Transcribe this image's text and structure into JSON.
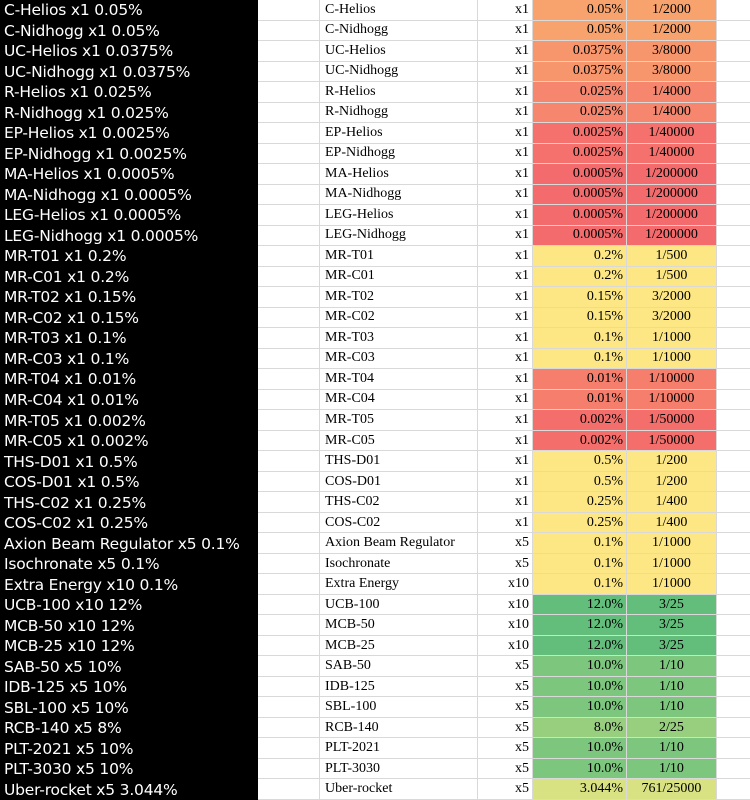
{
  "rows": [
    {
      "label": "C-Helios x1 0.05%",
      "name": "C-Helios",
      "qty": "x1",
      "pct": "0.05%",
      "frac": "1/2000",
      "color": "#f8a36e"
    },
    {
      "label": "C-Nidhogg x1 0.05%",
      "name": "C-Nidhogg",
      "qty": "x1",
      "pct": "0.05%",
      "frac": "1/2000",
      "color": "#f8a36e"
    },
    {
      "label": "UC-Helios x1 0.0375%",
      "name": "UC-Helios",
      "qty": "x1",
      "pct": "0.0375%",
      "frac": "3/8000",
      "color": "#f7956d"
    },
    {
      "label": "UC-Nidhogg x1 0.0375%",
      "name": "UC-Nidhogg",
      "qty": "x1",
      "pct": "0.0375%",
      "frac": "3/8000",
      "color": "#f7956d"
    },
    {
      "label": "R-Helios x1 0.025%",
      "name": "R-Helios",
      "qty": "x1",
      "pct": "0.025%",
      "frac": "1/4000",
      "color": "#f6876e"
    },
    {
      "label": "R-Nidhogg x1 0.025%",
      "name": "R-Nidhogg",
      "qty": "x1",
      "pct": "0.025%",
      "frac": "1/4000",
      "color": "#f6876e"
    },
    {
      "label": "EP-Helios x1 0.0025%",
      "name": "EP-Helios",
      "qty": "x1",
      "pct": "0.0025%",
      "frac": "1/40000",
      "color": "#f4716d"
    },
    {
      "label": "EP-Nidhogg x1 0.0025%",
      "name": "EP-Nidhogg",
      "qty": "x1",
      "pct": "0.0025%",
      "frac": "1/40000",
      "color": "#f4716d"
    },
    {
      "label": "MA-Helios x1 0.0005%",
      "name": "MA-Helios",
      "qty": "x1",
      "pct": "0.0005%",
      "frac": "1/200000",
      "color": "#f36b6c"
    },
    {
      "label": "MA-Nidhogg x1 0.0005%",
      "name": "MA-Nidhogg",
      "qty": "x1",
      "pct": "0.0005%",
      "frac": "1/200000",
      "color": "#f36b6c"
    },
    {
      "label": "LEG-Helios x1 0.0005%",
      "name": "LEG-Helios",
      "qty": "x1",
      "pct": "0.0005%",
      "frac": "1/200000",
      "color": "#f36b6c"
    },
    {
      "label": "LEG-Nidhogg x1 0.0005%",
      "name": "LEG-Nidhogg",
      "qty": "x1",
      "pct": "0.0005%",
      "frac": "1/200000",
      "color": "#f36b6c"
    },
    {
      "label": "MR-T01 x1 0.2%",
      "name": "MR-T01",
      "qty": "x1",
      "pct": "0.2%",
      "frac": "1/500",
      "color": "#fde784"
    },
    {
      "label": "MR-C01 x1 0.2%",
      "name": "MR-C01",
      "qty": "x1",
      "pct": "0.2%",
      "frac": "1/500",
      "color": "#fde784"
    },
    {
      "label": "MR-T02 x1 0.15%",
      "name": "MR-T02",
      "qty": "x1",
      "pct": "0.15%",
      "frac": "3/2000",
      "color": "#fde784"
    },
    {
      "label": "MR-C02 x1 0.15%",
      "name": "MR-C02",
      "qty": "x1",
      "pct": "0.15%",
      "frac": "3/2000",
      "color": "#fde784"
    },
    {
      "label": "MR-T03 x1 0.1%",
      "name": "MR-T03",
      "qty": "x1",
      "pct": "0.1%",
      "frac": "1/1000",
      "color": "#fde784"
    },
    {
      "label": "MR-C03 x1 0.1%",
      "name": "MR-C03",
      "qty": "x1",
      "pct": "0.1%",
      "frac": "1/1000",
      "color": "#fde784"
    },
    {
      "label": "MR-T04 x1 0.01%",
      "name": "MR-T04",
      "qty": "x1",
      "pct": "0.01%",
      "frac": "1/10000",
      "color": "#f67e6d"
    },
    {
      "label": "MR-C04 x1 0.01%",
      "name": "MR-C04",
      "qty": "x1",
      "pct": "0.01%",
      "frac": "1/10000",
      "color": "#f67e6d"
    },
    {
      "label": "MR-T05 x1 0.002%",
      "name": "MR-T05",
      "qty": "x1",
      "pct": "0.002%",
      "frac": "1/50000",
      "color": "#f46f6c"
    },
    {
      "label": "MR-C05 x1 0.002%",
      "name": "MR-C05",
      "qty": "x1",
      "pct": "0.002%",
      "frac": "1/50000",
      "color": "#f46f6c"
    },
    {
      "label": "THS-D01 x1 0.5%",
      "name": "THS-D01",
      "qty": "x1",
      "pct": "0.5%",
      "frac": "1/200",
      "color": "#fde784"
    },
    {
      "label": "COS-D01 x1 0.5%",
      "name": "COS-D01",
      "qty": "x1",
      "pct": "0.5%",
      "frac": "1/200",
      "color": "#fde784"
    },
    {
      "label": "THS-C02 x1 0.25%",
      "name": "THS-C02",
      "qty": "x1",
      "pct": "0.25%",
      "frac": "1/400",
      "color": "#fde784"
    },
    {
      "label": "COS-C02 x1 0.25%",
      "name": "COS-C02",
      "qty": "x1",
      "pct": "0.25%",
      "frac": "1/400",
      "color": "#fde784"
    },
    {
      "label": "Axion Beam Regulator x5 0.1%",
      "name": "Axion Beam Regulator",
      "qty": "x5",
      "pct": "0.1%",
      "frac": "1/1000",
      "color": "#fde784"
    },
    {
      "label": "Isochronate x5 0.1%",
      "name": "Isochronate",
      "qty": "x5",
      "pct": "0.1%",
      "frac": "1/1000",
      "color": "#fde784"
    },
    {
      "label": "Extra Energy x10 0.1%",
      "name": "Extra Energy",
      "qty": "x10",
      "pct": "0.1%",
      "frac": "1/1000",
      "color": "#fde784"
    },
    {
      "label": "UCB-100 x10 12%",
      "name": "UCB-100",
      "qty": "x10",
      "pct": "12.0%",
      "frac": "3/25",
      "color": "#63be7b"
    },
    {
      "label": "MCB-50 x10 12%",
      "name": "MCB-50",
      "qty": "x10",
      "pct": "12.0%",
      "frac": "3/25",
      "color": "#63be7b"
    },
    {
      "label": "MCB-25 x10 12%",
      "name": "MCB-25",
      "qty": "x10",
      "pct": "12.0%",
      "frac": "3/25",
      "color": "#63be7b"
    },
    {
      "label": "SAB-50 x5 10%",
      "name": "SAB-50",
      "qty": "x5",
      "pct": "10.0%",
      "frac": "1/10",
      "color": "#7cc67d"
    },
    {
      "label": "IDB-125 x5 10%",
      "name": "IDB-125",
      "qty": "x5",
      "pct": "10.0%",
      "frac": "1/10",
      "color": "#7cc67d"
    },
    {
      "label": "SBL-100 x5 10%",
      "name": "SBL-100",
      "qty": "x5",
      "pct": "10.0%",
      "frac": "1/10",
      "color": "#7cc67d"
    },
    {
      "label": "RCB-140 x5 8%",
      "name": "RCB-140",
      "qty": "x5",
      "pct": "8.0%",
      "frac": "2/25",
      "color": "#98cf7f"
    },
    {
      "label": "PLT-2021 x5 10%",
      "name": "PLT-2021",
      "qty": "x5",
      "pct": "10.0%",
      "frac": "1/10",
      "color": "#7cc67d"
    },
    {
      "label": "PLT-3030 x5 10%",
      "name": "PLT-3030",
      "qty": "x5",
      "pct": "10.0%",
      "frac": "1/10",
      "color": "#7cc67d"
    },
    {
      "label": "Uber-rocket x5 3.044%",
      "name": "Uber-rocket",
      "qty": "x5",
      "pct": "3.044%",
      "frac": "761/25000",
      "color": "#d9e283"
    }
  ]
}
